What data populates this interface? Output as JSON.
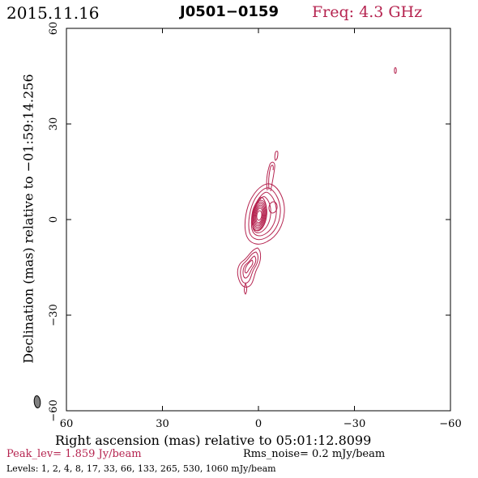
{
  "header": {
    "date": "2015.11.16",
    "source": "J0501−0159",
    "frequency": "Freq: 4.3 GHz"
  },
  "axes": {
    "x_title": "Right ascension (mas) relative to 05:01:12.8099",
    "y_title": "Declination (mas) relative to −01:59:14.256",
    "x_range": [
      60,
      -60
    ],
    "y_range": [
      -60,
      60
    ],
    "x_ticks": [
      {
        "value": 60,
        "label": "60"
      },
      {
        "value": 30,
        "label": "30"
      },
      {
        "value": 0,
        "label": "0"
      },
      {
        "value": -30,
        "label": "−30"
      },
      {
        "value": -60,
        "label": "−60"
      }
    ],
    "y_ticks": [
      {
        "value": 60,
        "label": "60"
      },
      {
        "value": 30,
        "label": "30"
      },
      {
        "value": 0,
        "label": "0"
      },
      {
        "value": -30,
        "label": "−30"
      },
      {
        "value": -60,
        "label": "−60"
      }
    ]
  },
  "footer": {
    "peak": "Peak_lev=  1.859 Jy/beam",
    "rms": "Rms_noise=  0.2 mJy/beam",
    "levels": "Levels:   1,    2,    4,    8,   17,   33,   66,  133,  265,  530,  1060 mJy/beam"
  },
  "colors": {
    "contour": "#b5234f",
    "beam": "#808080",
    "frame": "#000000"
  },
  "contour_levels_mjy": [
    1,
    2,
    4,
    8,
    17,
    33,
    66,
    133,
    265,
    530,
    1060
  ],
  "peak_jy_per_beam": 1.859,
  "rms_noise_mjy_per_beam": 0.2
}
